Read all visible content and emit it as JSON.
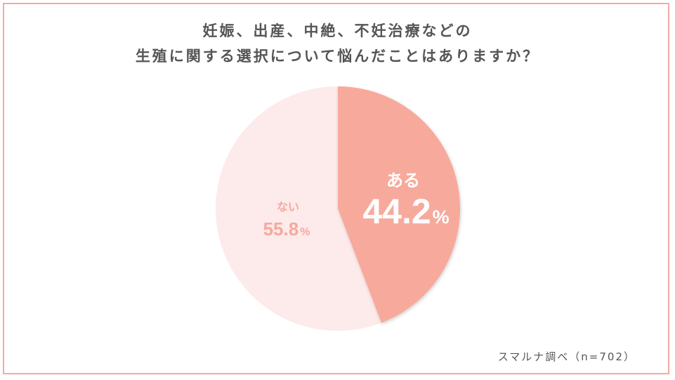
{
  "title_lines": [
    "妊娠、出産、中絶、不妊治療などの",
    "生殖に関する選択について悩んだことはありますか？"
  ],
  "source": "スマルナ調べ（n=702）",
  "colors": {
    "frame": "#f4aaa2",
    "slice_aru": "#f7aa9c",
    "slice_nai": "#fdeaea",
    "label_aru": "#ffffff",
    "label_nai": "#f5a99e",
    "title": "#555555"
  },
  "chart_data": {
    "type": "pie",
    "title": "妊娠、出産、中絶、不妊治療などの 生殖に関する選択について悩んだことはありますか？",
    "start": "top",
    "direction": "clockwise",
    "slices": [
      {
        "label": "ある",
        "value": 44.2,
        "value_text": "44.2",
        "unit": "%",
        "color": "#f7aa9c",
        "text_color": "#ffffff"
      },
      {
        "label": "ない",
        "value": 55.8,
        "value_text": "55.8",
        "unit": "%",
        "color": "#fdeaea",
        "text_color": "#f5a99e"
      }
    ]
  }
}
